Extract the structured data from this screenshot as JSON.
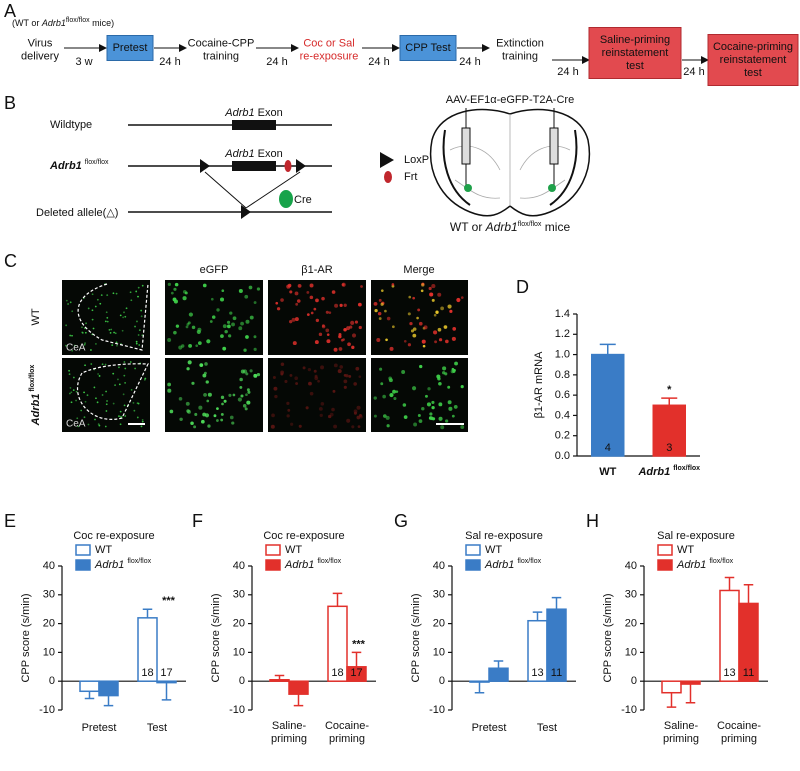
{
  "panel_labels": [
    "A",
    "B",
    "C",
    "D",
    "E",
    "F",
    "G",
    "H"
  ],
  "timeline": {
    "cohort": [
      "(WT or",
      "Adrb1",
      "flox/flox",
      "mice)"
    ],
    "steps": [
      {
        "lines": [
          "Virus",
          "delivery"
        ],
        "style": "text"
      },
      {
        "lines": [
          "Pretest"
        ],
        "style": "box-blue"
      },
      {
        "lines": [
          "Cocaine-CPP",
          "training"
        ],
        "style": "text"
      },
      {
        "lines": [
          "Coc or Sal",
          "re-exposure"
        ],
        "style": "text-red"
      },
      {
        "lines": [
          "CPP Test"
        ],
        "style": "box-blue"
      },
      {
        "lines": [
          "Extinction",
          "training"
        ],
        "style": "text"
      },
      {
        "lines": [
          "Saline-priming",
          "reinstatement",
          "test"
        ],
        "style": "box-red"
      },
      {
        "lines": [
          "Cocaine-priming",
          "reinstatement",
          "test"
        ],
        "style": "box-red"
      }
    ],
    "intervals": [
      "3 w",
      "24 h",
      "24 h",
      "24 h",
      "24 h",
      "24 h",
      "24 h"
    ]
  },
  "schematic": {
    "rows": [
      "Wildtype",
      [
        "Adrb1",
        "flox/flox"
      ],
      "Deleted allele(△)"
    ],
    "exon_label": [
      "Adrb1",
      "Exon"
    ],
    "cre": "Cre",
    "legend": [
      "LoxP",
      "Frt"
    ],
    "virus": "AAV-EF1α-eGFP-T2A-Cre",
    "mice": [
      "WT or",
      "Adrb1",
      "flox/flox",
      "mice"
    ]
  },
  "micrographs": {
    "columns": [
      "eGFP",
      "β1-AR",
      "Merge"
    ],
    "rows": [
      "WT",
      [
        "Adrb1",
        "flox/flox"
      ]
    ],
    "region": "CeA"
  },
  "chart_data": [
    {
      "type": "bar",
      "ylabel": "β1-AR mRNA",
      "categories": [
        "WT",
        "Adrb1 flox/flox"
      ],
      "values": [
        1.0,
        0.5
      ],
      "errors": [
        0.1,
        0.07
      ],
      "colors": [
        "#3a7cc6",
        "#e2302b"
      ],
      "n": [
        4,
        3
      ],
      "significance": [
        null,
        "*"
      ],
      "ylim": [
        0,
        1.4
      ],
      "yticks": [
        {
          "value": 0,
          "label": "0.0"
        },
        {
          "value": 0.2,
          "label": "0.2"
        },
        {
          "value": 0.4,
          "label": "0.4"
        },
        {
          "value": 0.6,
          "label": "0.6"
        },
        {
          "value": 0.8,
          "label": "0.8"
        },
        {
          "value": 1.0,
          "label": "1.0"
        },
        {
          "value": 1.2,
          "label": "1.2"
        },
        {
          "value": 1.4,
          "label": "1.4"
        }
      ]
    },
    {
      "type": "grouped-bar",
      "title": "Coc re-exposure",
      "ylabel": "CPP score (s/min)",
      "categories": [
        "Pretest",
        "Test"
      ],
      "series": [
        {
          "name": "WT",
          "color": "#3a7cc6",
          "filled": false,
          "values": [
            -3.5,
            22
          ],
          "errors": [
            2.5,
            3
          ],
          "n": [
            null,
            18
          ],
          "significance": [
            null,
            null
          ]
        },
        {
          "name": "Adrb1 flox/flox",
          "color": "#3a7cc6",
          "filled": true,
          "values": [
            -5,
            -0.5
          ],
          "errors": [
            3.5,
            6
          ],
          "n": [
            null,
            17
          ],
          "significance": [
            null,
            "***"
          ]
        }
      ],
      "ylim": [
        -10,
        40
      ],
      "yticks": [
        -10,
        0,
        10,
        20,
        30,
        40
      ]
    },
    {
      "type": "grouped-bar",
      "title": "Coc re-exposure",
      "ylabel": "CPP score (s/min)",
      "categories": [
        "Saline-priming",
        "Cocaine-priming"
      ],
      "series": [
        {
          "name": "WT",
          "color": "#e2302b",
          "filled": false,
          "values": [
            0.5,
            26
          ],
          "errors": [
            1.5,
            4.5
          ],
          "n": [
            null,
            18
          ],
          "significance": [
            null,
            null
          ]
        },
        {
          "name": "Adrb1 flox/flox",
          "color": "#e2302b",
          "filled": true,
          "values": [
            -4.5,
            5
          ],
          "errors": [
            4,
            5
          ],
          "n": [
            null,
            17
          ],
          "significance": [
            null,
            "***"
          ]
        }
      ],
      "ylim": [
        -10,
        40
      ],
      "yticks": [
        -10,
        0,
        10,
        20,
        30,
        40
      ]
    },
    {
      "type": "grouped-bar",
      "title": "Sal re-exposure",
      "ylabel": "CPP score (s/min)",
      "categories": [
        "Pretest",
        "Test"
      ],
      "series": [
        {
          "name": "WT",
          "color": "#3a7cc6",
          "filled": false,
          "values": [
            -0.3,
            21
          ],
          "errors": [
            3.7,
            3
          ],
          "n": [
            null,
            13
          ],
          "significance": [
            null,
            null
          ]
        },
        {
          "name": "Adrb1 flox/flox",
          "color": "#3a7cc6",
          "filled": true,
          "values": [
            4.5,
            25
          ],
          "errors": [
            2.5,
            4
          ],
          "n": [
            null,
            11
          ],
          "significance": [
            null,
            null
          ]
        }
      ],
      "ylim": [
        -10,
        40
      ],
      "yticks": [
        -10,
        0,
        10,
        20,
        30,
        40
      ]
    },
    {
      "type": "grouped-bar",
      "title": "Sal re-exposure",
      "ylabel": "CPP score (s/min)",
      "categories": [
        "Saline-priming",
        "Cocaine-priming"
      ],
      "series": [
        {
          "name": "WT",
          "color": "#e2302b",
          "filled": false,
          "values": [
            -4,
            31.5
          ],
          "errors": [
            5,
            4.5
          ],
          "n": [
            null,
            13
          ],
          "significance": [
            null,
            null
          ]
        },
        {
          "name": "Adrb1 flox/flox",
          "color": "#e2302b",
          "filled": true,
          "values": [
            -1,
            27
          ],
          "errors": [
            6.5,
            6.5
          ],
          "n": [
            null,
            11
          ],
          "significance": [
            null,
            null
          ]
        }
      ],
      "ylim": [
        -10,
        40
      ],
      "yticks": [
        -10,
        0,
        10,
        20,
        30,
        40
      ]
    }
  ]
}
